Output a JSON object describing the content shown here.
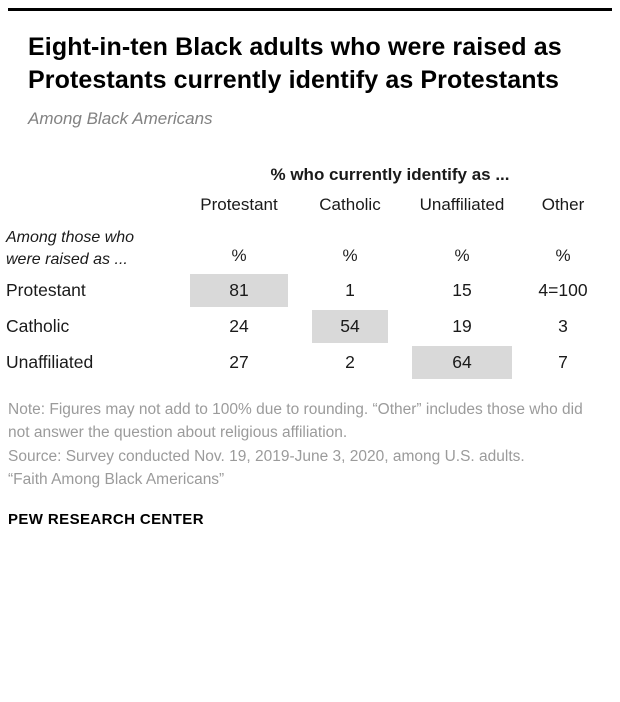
{
  "colors": {
    "top_rule": "#000000",
    "highlight_cell": "#d9d9d9",
    "note_text": "#9b9b9b",
    "subtitle_text": "#828282"
  },
  "header": {
    "title": "Eight-in-ten Black adults who were raised as Protestants currently identify as Protestants",
    "subtitle": "Among Black Americans"
  },
  "table": {
    "group_header": "% who currently identify as ...",
    "row_group_label": "Among those who were raised as ...",
    "columns": [
      "Protestant",
      "Catholic",
      "Unaffiliated",
      "Other"
    ],
    "unit_row": [
      "%",
      "%",
      "%",
      "%"
    ],
    "rows": [
      {
        "label": "Protestant",
        "values": [
          "81",
          "1",
          "15",
          "4=100"
        ]
      },
      {
        "label": "Catholic",
        "values": [
          "24",
          "54",
          "19",
          "3"
        ]
      },
      {
        "label": "Unaffiliated",
        "values": [
          "27",
          "2",
          "64",
          "7"
        ]
      }
    ]
  },
  "chart_data": {
    "type": "table",
    "title": "Eight-in-ten Black adults who were raised as Protestants currently identify as Protestants",
    "subtitle": "Among Black Americans",
    "column_group_label": "% who currently identify as ...",
    "row_group_label": "Among those who were raised as ...",
    "columns": [
      "Protestant",
      "Catholic",
      "Unaffiliated",
      "Other"
    ],
    "row_categories": [
      "Protestant",
      "Catholic",
      "Unaffiliated"
    ],
    "values": [
      [
        81,
        1,
        15,
        4
      ],
      [
        24,
        54,
        19,
        3
      ],
      [
        27,
        2,
        64,
        7
      ]
    ],
    "units": "%",
    "first_row_total_annotation": "4=100",
    "highlighted_cells": [
      [
        0,
        0
      ],
      [
        1,
        1
      ],
      [
        2,
        2
      ]
    ],
    "legend_position": "none",
    "grid": false
  },
  "notes": {
    "note": "Note: Figures may not add to 100% due to rounding. “Other” includes those who did not answer the question about religious affiliation.",
    "source": "Source: Survey conducted Nov. 19, 2019-June 3, 2020, among U.S. adults.",
    "citation": "“Faith Among Black Americans”"
  },
  "footer": {
    "brand": "PEW RESEARCH CENTER"
  }
}
